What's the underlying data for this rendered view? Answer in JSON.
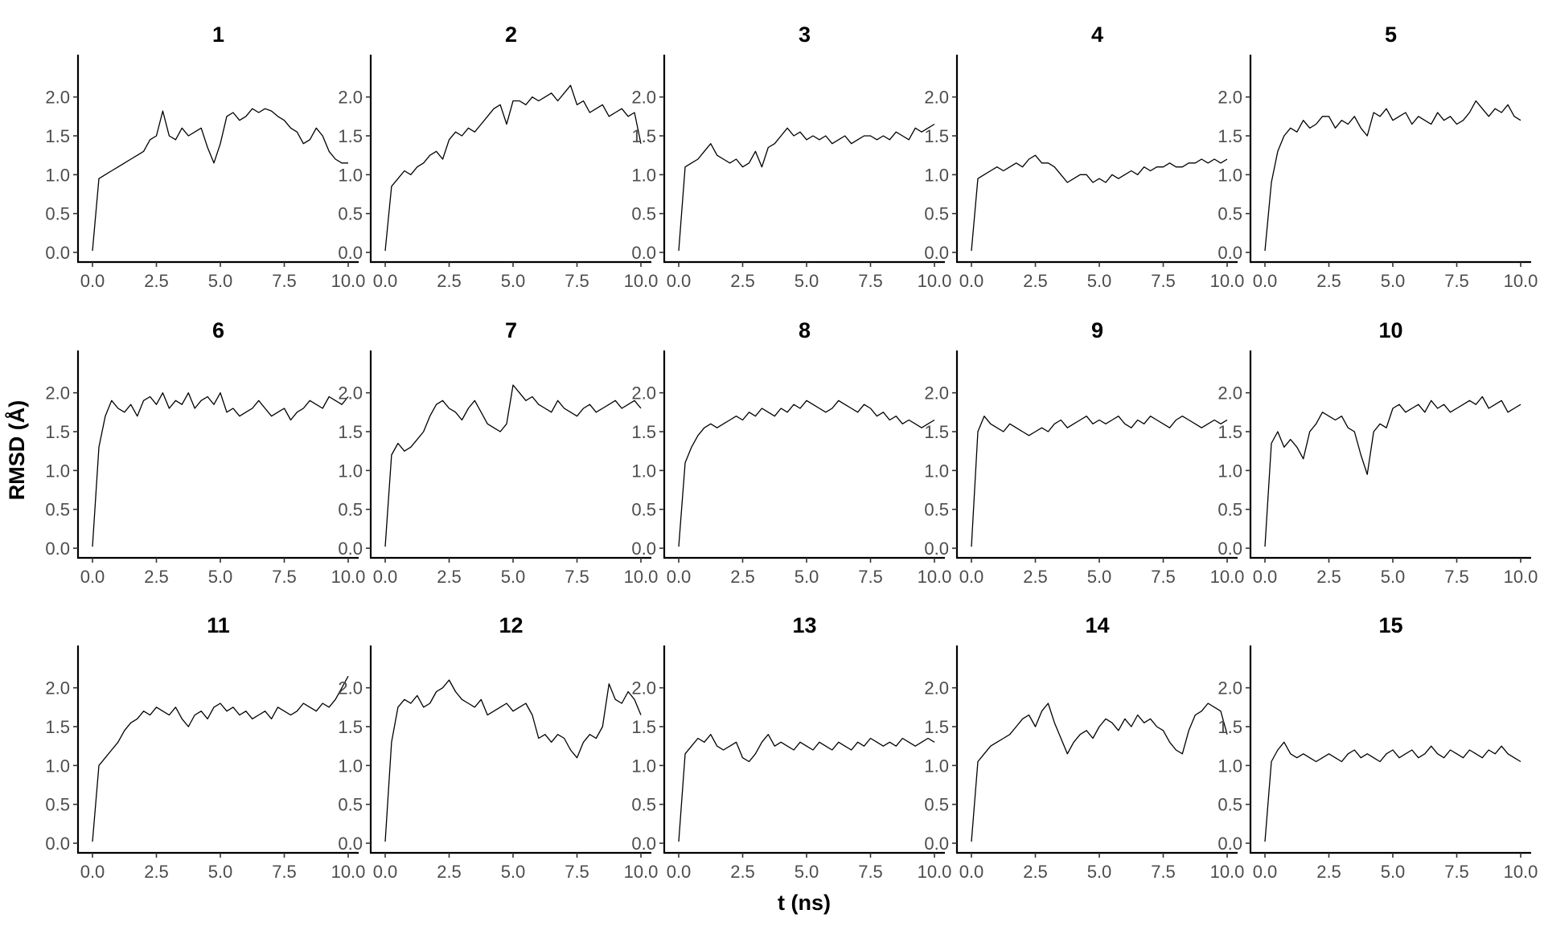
{
  "chart_data": {
    "type": "line",
    "facet_layout": "3 rows x 5 columns, shared axes",
    "xlabel": "t (ns)",
    "ylabel": "RMSD (Å)",
    "xlim": [
      0,
      10
    ],
    "ylim": [
      0,
      2.4
    ],
    "x_ticks": [
      0,
      2.5,
      5,
      7.5,
      10
    ],
    "x_tick_labels": [
      "0.0",
      "2.5",
      "5.0",
      "7.5",
      "10.0"
    ],
    "y_ticks": [
      0,
      0.5,
      1,
      1.5,
      2
    ],
    "y_tick_labels": [
      "0.0",
      "0.5",
      "1.0",
      "1.5",
      "2.0"
    ],
    "grid": false,
    "line_color": "#000000",
    "x": [
      0,
      0.25,
      0.5,
      0.75,
      1,
      1.25,
      1.5,
      1.75,
      2,
      2.25,
      2.5,
      2.75,
      3,
      3.25,
      3.5,
      3.75,
      4,
      4.25,
      4.5,
      4.75,
      5,
      5.25,
      5.5,
      5.75,
      6,
      6.25,
      6.5,
      6.75,
      7,
      7.25,
      7.5,
      7.75,
      8,
      8.25,
      8.5,
      8.75,
      9,
      9.25,
      9.5,
      9.75,
      10
    ],
    "series": [
      {
        "panel": "1",
        "values": [
          0.02,
          0.95,
          1.0,
          1.05,
          1.1,
          1.15,
          1.2,
          1.25,
          1.3,
          1.45,
          1.5,
          1.82,
          1.5,
          1.45,
          1.6,
          1.5,
          1.55,
          1.6,
          1.35,
          1.15,
          1.4,
          1.75,
          1.8,
          1.7,
          1.75,
          1.85,
          1.8,
          1.85,
          1.82,
          1.75,
          1.7,
          1.6,
          1.55,
          1.4,
          1.45,
          1.6,
          1.5,
          1.3,
          1.2,
          1.15,
          1.15
        ]
      },
      {
        "panel": "2",
        "values": [
          0.02,
          0.85,
          0.95,
          1.05,
          1.0,
          1.1,
          1.15,
          1.25,
          1.3,
          1.2,
          1.45,
          1.55,
          1.5,
          1.6,
          1.55,
          1.65,
          1.75,
          1.85,
          1.9,
          1.65,
          1.95,
          1.95,
          1.9,
          2.0,
          1.95,
          2.0,
          2.05,
          1.95,
          2.05,
          2.15,
          1.9,
          1.95,
          1.8,
          1.85,
          1.9,
          1.75,
          1.8,
          1.85,
          1.75,
          1.8,
          1.4
        ]
      },
      {
        "panel": "3",
        "values": [
          0.02,
          1.1,
          1.15,
          1.2,
          1.3,
          1.4,
          1.25,
          1.2,
          1.15,
          1.2,
          1.1,
          1.15,
          1.3,
          1.1,
          1.35,
          1.4,
          1.5,
          1.6,
          1.5,
          1.55,
          1.45,
          1.5,
          1.45,
          1.5,
          1.4,
          1.45,
          1.5,
          1.4,
          1.45,
          1.5,
          1.5,
          1.45,
          1.5,
          1.45,
          1.55,
          1.5,
          1.45,
          1.6,
          1.55,
          1.6,
          1.65
        ]
      },
      {
        "panel": "4",
        "values": [
          0.02,
          0.95,
          1.0,
          1.05,
          1.1,
          1.05,
          1.1,
          1.15,
          1.1,
          1.2,
          1.25,
          1.15,
          1.15,
          1.1,
          1.0,
          0.9,
          0.95,
          1.0,
          1.0,
          0.9,
          0.95,
          0.9,
          1.0,
          0.95,
          1.0,
          1.05,
          1.0,
          1.1,
          1.05,
          1.1,
          1.1,
          1.15,
          1.1,
          1.1,
          1.15,
          1.15,
          1.2,
          1.15,
          1.2,
          1.15,
          1.2
        ]
      },
      {
        "panel": "5",
        "values": [
          0.02,
          0.9,
          1.3,
          1.5,
          1.6,
          1.55,
          1.7,
          1.6,
          1.65,
          1.75,
          1.75,
          1.6,
          1.7,
          1.65,
          1.75,
          1.6,
          1.5,
          1.8,
          1.75,
          1.85,
          1.7,
          1.75,
          1.8,
          1.65,
          1.75,
          1.7,
          1.65,
          1.8,
          1.7,
          1.75,
          1.65,
          1.7,
          1.8,
          1.95,
          1.85,
          1.75,
          1.85,
          1.8,
          1.9,
          1.75,
          1.7
        ]
      },
      {
        "panel": "6",
        "values": [
          0.02,
          1.3,
          1.7,
          1.9,
          1.8,
          1.75,
          1.85,
          1.7,
          1.9,
          1.95,
          1.85,
          2.0,
          1.8,
          1.9,
          1.85,
          2.0,
          1.8,
          1.9,
          1.95,
          1.85,
          2.0,
          1.75,
          1.8,
          1.7,
          1.75,
          1.8,
          1.9,
          1.8,
          1.7,
          1.75,
          1.8,
          1.65,
          1.75,
          1.8,
          1.9,
          1.85,
          1.8,
          1.95,
          1.9,
          1.85,
          1.95
        ]
      },
      {
        "panel": "7",
        "values": [
          0.02,
          1.2,
          1.35,
          1.25,
          1.3,
          1.4,
          1.5,
          1.7,
          1.85,
          1.9,
          1.8,
          1.75,
          1.65,
          1.8,
          1.9,
          1.75,
          1.6,
          1.55,
          1.5,
          1.6,
          2.1,
          2.0,
          1.9,
          1.95,
          1.85,
          1.8,
          1.75,
          1.9,
          1.8,
          1.75,
          1.7,
          1.8,
          1.85,
          1.75,
          1.8,
          1.85,
          1.9,
          1.8,
          1.85,
          1.9,
          1.8
        ]
      },
      {
        "panel": "8",
        "values": [
          0.02,
          1.1,
          1.3,
          1.45,
          1.55,
          1.6,
          1.55,
          1.6,
          1.65,
          1.7,
          1.65,
          1.75,
          1.7,
          1.8,
          1.75,
          1.7,
          1.8,
          1.75,
          1.85,
          1.8,
          1.9,
          1.85,
          1.8,
          1.75,
          1.8,
          1.9,
          1.85,
          1.8,
          1.75,
          1.85,
          1.8,
          1.7,
          1.75,
          1.65,
          1.7,
          1.6,
          1.65,
          1.6,
          1.55,
          1.6,
          1.65
        ]
      },
      {
        "panel": "9",
        "values": [
          0.02,
          1.5,
          1.7,
          1.6,
          1.55,
          1.5,
          1.6,
          1.55,
          1.5,
          1.45,
          1.5,
          1.55,
          1.5,
          1.6,
          1.65,
          1.55,
          1.6,
          1.65,
          1.7,
          1.6,
          1.65,
          1.6,
          1.65,
          1.7,
          1.6,
          1.55,
          1.65,
          1.6,
          1.7,
          1.65,
          1.6,
          1.55,
          1.65,
          1.7,
          1.65,
          1.6,
          1.55,
          1.6,
          1.65,
          1.6,
          1.65
        ]
      },
      {
        "panel": "10",
        "values": [
          0.02,
          1.35,
          1.5,
          1.3,
          1.4,
          1.3,
          1.15,
          1.5,
          1.6,
          1.75,
          1.7,
          1.65,
          1.7,
          1.55,
          1.5,
          1.2,
          0.95,
          1.5,
          1.6,
          1.55,
          1.8,
          1.85,
          1.75,
          1.8,
          1.85,
          1.75,
          1.9,
          1.8,
          1.85,
          1.75,
          1.8,
          1.85,
          1.9,
          1.85,
          1.95,
          1.8,
          1.85,
          1.9,
          1.75,
          1.8,
          1.85
        ]
      },
      {
        "panel": "11",
        "values": [
          0.02,
          1.0,
          1.1,
          1.2,
          1.3,
          1.45,
          1.55,
          1.6,
          1.7,
          1.65,
          1.75,
          1.7,
          1.65,
          1.75,
          1.6,
          1.5,
          1.65,
          1.7,
          1.6,
          1.75,
          1.8,
          1.7,
          1.75,
          1.65,
          1.7,
          1.6,
          1.65,
          1.7,
          1.6,
          1.75,
          1.7,
          1.65,
          1.7,
          1.8,
          1.75,
          1.7,
          1.8,
          1.75,
          1.85,
          2.0,
          2.15
        ]
      },
      {
        "panel": "12",
        "values": [
          0.02,
          1.3,
          1.75,
          1.85,
          1.8,
          1.9,
          1.75,
          1.8,
          1.95,
          2.0,
          2.1,
          1.95,
          1.85,
          1.8,
          1.75,
          1.85,
          1.65,
          1.7,
          1.75,
          1.8,
          1.7,
          1.75,
          1.8,
          1.65,
          1.35,
          1.4,
          1.3,
          1.4,
          1.35,
          1.2,
          1.1,
          1.3,
          1.4,
          1.35,
          1.5,
          2.05,
          1.85,
          1.8,
          1.95,
          1.85,
          1.65
        ]
      },
      {
        "panel": "13",
        "values": [
          0.02,
          1.15,
          1.25,
          1.35,
          1.3,
          1.4,
          1.25,
          1.2,
          1.25,
          1.3,
          1.1,
          1.05,
          1.15,
          1.3,
          1.4,
          1.25,
          1.3,
          1.25,
          1.2,
          1.3,
          1.25,
          1.2,
          1.3,
          1.25,
          1.2,
          1.3,
          1.25,
          1.2,
          1.3,
          1.25,
          1.35,
          1.3,
          1.25,
          1.3,
          1.25,
          1.35,
          1.3,
          1.25,
          1.3,
          1.35,
          1.3
        ]
      },
      {
        "panel": "14",
        "values": [
          0.02,
          1.05,
          1.15,
          1.25,
          1.3,
          1.35,
          1.4,
          1.5,
          1.6,
          1.65,
          1.5,
          1.7,
          1.8,
          1.55,
          1.35,
          1.15,
          1.3,
          1.4,
          1.45,
          1.35,
          1.5,
          1.6,
          1.55,
          1.45,
          1.6,
          1.5,
          1.65,
          1.55,
          1.6,
          1.5,
          1.45,
          1.3,
          1.2,
          1.15,
          1.45,
          1.65,
          1.7,
          1.8,
          1.75,
          1.7,
          1.4
        ]
      },
      {
        "panel": "15",
        "values": [
          0.02,
          1.05,
          1.2,
          1.3,
          1.15,
          1.1,
          1.15,
          1.1,
          1.05,
          1.1,
          1.15,
          1.1,
          1.05,
          1.15,
          1.2,
          1.1,
          1.15,
          1.1,
          1.05,
          1.15,
          1.2,
          1.1,
          1.15,
          1.2,
          1.1,
          1.15,
          1.25,
          1.15,
          1.1,
          1.2,
          1.15,
          1.1,
          1.2,
          1.15,
          1.1,
          1.2,
          1.15,
          1.25,
          1.15,
          1.1,
          1.05
        ]
      }
    ]
  }
}
